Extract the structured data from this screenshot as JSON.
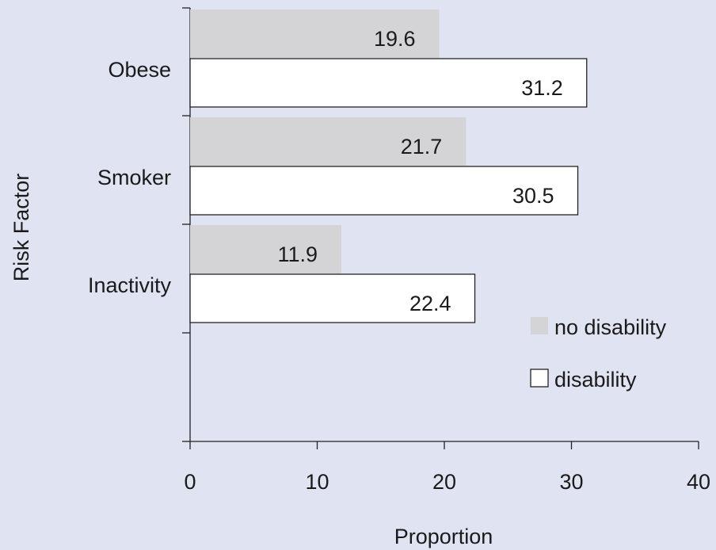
{
  "chart_data": {
    "type": "bar",
    "orientation": "horizontal",
    "title": "",
    "xlabel": "Proportion",
    "ylabel": "Risk Factor",
    "xlim": [
      0,
      40
    ],
    "xticks": [
      "0",
      "10",
      "20",
      "30",
      "40"
    ],
    "categories": [
      "Obese",
      "Smoker",
      "Inactivity"
    ],
    "series": [
      {
        "name": "no disability",
        "values": [
          19.6,
          21.7,
          11.9
        ],
        "color": "#d4d4d6"
      },
      {
        "name": "disability",
        "values": [
          31.2,
          30.5,
          22.4
        ],
        "color": "#ffffff"
      }
    ],
    "data_labels": [
      [
        "19.6",
        "21.7",
        "11.9"
      ],
      [
        "31.2",
        "30.5",
        "22.4"
      ]
    ],
    "legend": {
      "placement": "lower-right"
    },
    "grid": false,
    "background_color": "#e0e4f2"
  }
}
